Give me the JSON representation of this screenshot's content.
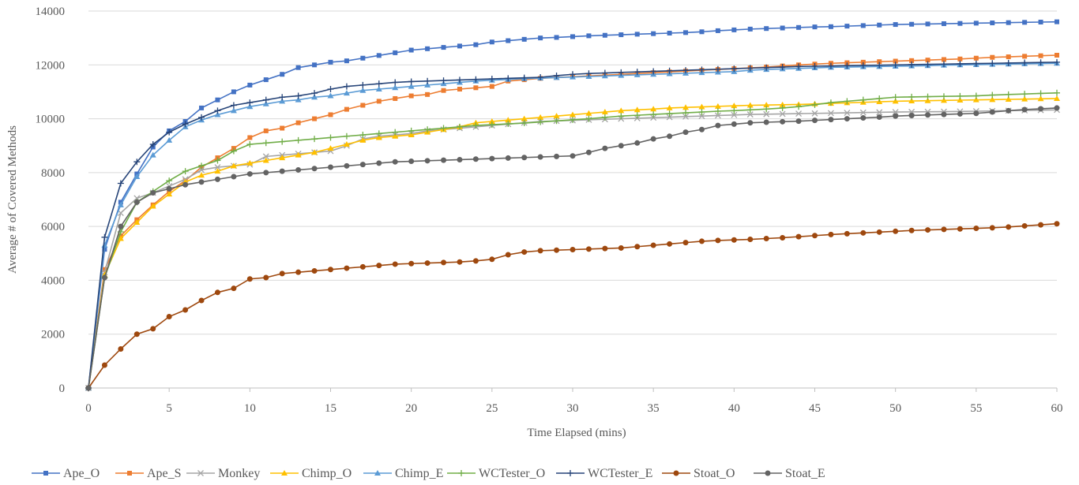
{
  "chart_data": {
    "type": "line",
    "xlabel": "Time Elapsed (mins)",
    "ylabel": "Average # of Covered Methods",
    "xlim": [
      0,
      60
    ],
    "ylim": [
      0,
      14000
    ],
    "x_ticks": [
      0,
      5,
      10,
      15,
      20,
      25,
      30,
      35,
      40,
      45,
      50,
      55,
      60
    ],
    "y_ticks": [
      0,
      2000,
      4000,
      6000,
      8000,
      10000,
      12000,
      14000
    ],
    "grid": "horizontal",
    "legend": "bottom",
    "x": [
      0,
      1,
      2,
      3,
      4,
      5,
      6,
      7,
      8,
      9,
      10,
      11,
      12,
      13,
      14,
      15,
      16,
      17,
      18,
      19,
      20,
      21,
      22,
      23,
      24,
      25,
      26,
      27,
      28,
      29,
      30,
      31,
      32,
      33,
      34,
      35,
      36,
      37,
      38,
      39,
      40,
      41,
      42,
      43,
      44,
      45,
      46,
      47,
      48,
      49,
      50,
      51,
      52,
      53,
      54,
      55,
      56,
      57,
      58,
      59,
      60
    ],
    "series": [
      {
        "name": "Ape_O",
        "color": "#4472c4",
        "marker": "square",
        "values": [
          0,
          5150,
          6900,
          7950,
          8950,
          9550,
          9900,
          10400,
          10700,
          11000,
          11250,
          11450,
          11650,
          11900,
          12000,
          12100,
          12150,
          12250,
          12350,
          12450,
          12550,
          12600,
          12650,
          12700,
          12750,
          12850,
          12900,
          12950,
          13000,
          13020,
          13050,
          13080,
          13100,
          13120,
          13140,
          13160,
          13180,
          13200,
          13230,
          13270,
          13300,
          13330,
          13350,
          13370,
          13390,
          13410,
          13420,
          13440,
          13460,
          13480,
          13500,
          13510,
          13520,
          13530,
          13540,
          13550,
          13560,
          13570,
          13580,
          13590,
          13600
        ]
      },
      {
        "name": "Ape_S",
        "color": "#ed7d31",
        "marker": "square",
        "values": [
          0,
          4400,
          5650,
          6250,
          6800,
          7300,
          7700,
          8200,
          8550,
          8900,
          9300,
          9550,
          9650,
          9850,
          10000,
          10150,
          10350,
          10500,
          10650,
          10750,
          10850,
          10900,
          11050,
          11100,
          11150,
          11200,
          11400,
          11450,
          11500,
          11530,
          11560,
          11590,
          11620,
          11650,
          11680,
          11710,
          11740,
          11770,
          11800,
          11830,
          11860,
          11890,
          11920,
          11960,
          12000,
          12030,
          12060,
          12080,
          12100,
          12120,
          12140,
          12160,
          12180,
          12200,
          12220,
          12250,
          12280,
          12300,
          12320,
          12340,
          12360
        ]
      },
      {
        "name": "Monkey",
        "color": "#a5a5a5",
        "marker": "x",
        "values": [
          0,
          4300,
          6500,
          7050,
          7250,
          7500,
          7750,
          8100,
          8200,
          8250,
          8300,
          8600,
          8650,
          8700,
          8750,
          8800,
          9000,
          9250,
          9350,
          9400,
          9450,
          9550,
          9600,
          9650,
          9700,
          9750,
          9800,
          9850,
          9900,
          9920,
          9940,
          9960,
          9980,
          10000,
          10020,
          10040,
          10060,
          10080,
          10100,
          10120,
          10140,
          10160,
          10170,
          10180,
          10190,
          10200,
          10210,
          10220,
          10230,
          10240,
          10250,
          10255,
          10260,
          10265,
          10270,
          10280,
          10290,
          10300,
          10310,
          10320,
          10330
        ]
      },
      {
        "name": "Chimp_O",
        "color": "#ffc000",
        "marker": "triangle",
        "values": [
          0,
          4200,
          5550,
          6150,
          6750,
          7200,
          7650,
          7900,
          8050,
          8250,
          8350,
          8450,
          8550,
          8650,
          8750,
          8900,
          9050,
          9200,
          9300,
          9350,
          9400,
          9500,
          9600,
          9700,
          9850,
          9900,
          9950,
          10000,
          10050,
          10100,
          10150,
          10200,
          10250,
          10300,
          10330,
          10360,
          10400,
          10420,
          10440,
          10460,
          10480,
          10500,
          10510,
          10520,
          10530,
          10550,
          10570,
          10590,
          10610,
          10630,
          10650,
          10660,
          10670,
          10680,
          10690,
          10700,
          10710,
          10720,
          10730,
          10740,
          10750
        ]
      },
      {
        "name": "Chimp_E",
        "color": "#5b9bd5",
        "marker": "triangle",
        "values": [
          0,
          5300,
          6800,
          7850,
          8650,
          9200,
          9700,
          9950,
          10150,
          10300,
          10450,
          10550,
          10650,
          10700,
          10800,
          10850,
          10950,
          11050,
          11100,
          11150,
          11200,
          11250,
          11300,
          11350,
          11400,
          11430,
          11460,
          11490,
          11510,
          11530,
          11550,
          11570,
          11590,
          11610,
          11630,
          11650,
          11670,
          11690,
          11710,
          11730,
          11750,
          11800,
          11830,
          11850,
          11870,
          11890,
          11910,
          11920,
          11930,
          11940,
          11950,
          11960,
          11970,
          11990,
          12000,
          12010,
          12020,
          12030,
          12040,
          12050,
          12060
        ]
      },
      {
        "name": "WCTester_O",
        "color": "#70ad47",
        "marker": "plus",
        "values": [
          0,
          4100,
          5800,
          6900,
          7300,
          7700,
          8050,
          8250,
          8450,
          8800,
          9050,
          9100,
          9150,
          9200,
          9250,
          9300,
          9350,
          9400,
          9450,
          9500,
          9550,
          9600,
          9650,
          9700,
          9750,
          9780,
          9810,
          9840,
          9880,
          9920,
          9960,
          10000,
          10050,
          10100,
          10130,
          10160,
          10190,
          10220,
          10250,
          10280,
          10300,
          10330,
          10360,
          10400,
          10450,
          10520,
          10600,
          10650,
          10700,
          10750,
          10800,
          10810,
          10820,
          10830,
          10840,
          10850,
          10880,
          10900,
          10920,
          10940,
          10960
        ]
      },
      {
        "name": "WCTester_E",
        "color": "#264478",
        "marker": "plus",
        "values": [
          0,
          5600,
          7600,
          8400,
          9050,
          9500,
          9800,
          10050,
          10300,
          10500,
          10600,
          10700,
          10800,
          10850,
          10950,
          11100,
          11200,
          11250,
          11300,
          11350,
          11380,
          11400,
          11420,
          11440,
          11460,
          11480,
          11500,
          11520,
          11540,
          11600,
          11650,
          11680,
          11700,
          11720,
          11740,
          11760,
          11780,
          11800,
          11820,
          11840,
          11860,
          11880,
          11900,
          11920,
          11940,
          11950,
          11960,
          11970,
          11980,
          11990,
          12000,
          12010,
          12020,
          12030,
          12040,
          12050,
          12060,
          12070,
          12080,
          12090,
          12100
        ]
      },
      {
        "name": "Stoat_O",
        "color": "#9e480e",
        "marker": "circle",
        "values": [
          0,
          850,
          1450,
          2000,
          2200,
          2650,
          2900,
          3250,
          3550,
          3700,
          4050,
          4100,
          4250,
          4300,
          4350,
          4400,
          4450,
          4500,
          4550,
          4600,
          4620,
          4640,
          4660,
          4680,
          4720,
          4780,
          4950,
          5050,
          5100,
          5120,
          5140,
          5160,
          5180,
          5200,
          5250,
          5300,
          5350,
          5400,
          5450,
          5480,
          5500,
          5520,
          5550,
          5580,
          5620,
          5660,
          5700,
          5730,
          5760,
          5790,
          5820,
          5850,
          5870,
          5890,
          5910,
          5930,
          5950,
          5980,
          6020,
          6060,
          6100
        ]
      },
      {
        "name": "Stoat_E",
        "color": "#636363",
        "marker": "circle",
        "values": [
          0,
          4100,
          6000,
          6900,
          7250,
          7400,
          7550,
          7650,
          7750,
          7850,
          7950,
          8000,
          8050,
          8100,
          8150,
          8200,
          8250,
          8300,
          8350,
          8400,
          8420,
          8440,
          8460,
          8480,
          8500,
          8520,
          8540,
          8560,
          8580,
          8600,
          8620,
          8750,
          8900,
          9000,
          9100,
          9250,
          9350,
          9500,
          9600,
          9750,
          9800,
          9850,
          9870,
          9890,
          9910,
          9940,
          9970,
          10000,
          10030,
          10060,
          10100,
          10120,
          10140,
          10160,
          10180,
          10200,
          10250,
          10300,
          10340,
          10370,
          10400
        ]
      }
    ]
  }
}
